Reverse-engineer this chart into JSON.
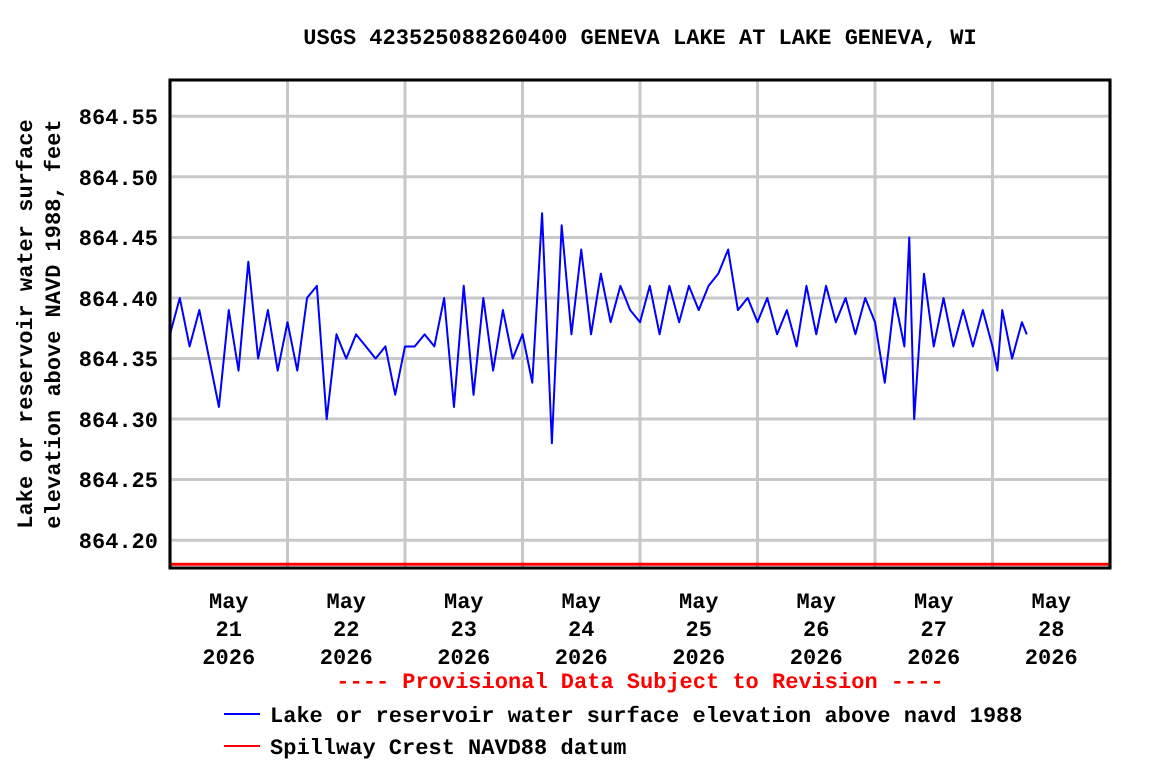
{
  "chart_data": {
    "type": "line",
    "title": "USGS 423525088260400 GENEVA LAKE AT LAKE GENEVA, WI",
    "ylabel": "Lake or reservoir water surface\nelevation above NAVD 1988, feet",
    "annotations": [
      "---- Provisional Data Subject to Revision ----"
    ],
    "xlim": [
      "2026-05-21T00:00",
      "2026-05-29T00:00"
    ],
    "xticks": [
      {
        "value": "2026-05-21T00:00",
        "label": null
      },
      {
        "value": "2026-05-21T12:00",
        "label": "May\n21\n2026"
      },
      {
        "value": "2026-05-22T00:00",
        "label": null
      },
      {
        "value": "2026-05-22T12:00",
        "label": "May\n22\n2026"
      },
      {
        "value": "2026-05-23T00:00",
        "label": null
      },
      {
        "value": "2026-05-23T12:00",
        "label": "May\n23\n2026"
      },
      {
        "value": "2026-05-24T00:00",
        "label": null
      },
      {
        "value": "2026-05-24T12:00",
        "label": "May\n24\n2026"
      },
      {
        "value": "2026-05-25T00:00",
        "label": null
      },
      {
        "value": "2026-05-25T12:00",
        "label": "May\n25\n2026"
      },
      {
        "value": "2026-05-26T00:00",
        "label": null
      },
      {
        "value": "2026-05-26T12:00",
        "label": "May\n26\n2026"
      },
      {
        "value": "2026-05-27T00:00",
        "label": null
      },
      {
        "value": "2026-05-27T12:00",
        "label": "May\n27\n2026"
      },
      {
        "value": "2026-05-28T00:00",
        "label": null
      },
      {
        "value": "2026-05-28T12:00",
        "label": "May\n28\n2026"
      },
      {
        "value": "2026-05-29T00:00",
        "label": null
      }
    ],
    "ylim": [
      864.177,
      864.58
    ],
    "yticks": [
      {
        "value": 864.2,
        "label": "864.20"
      },
      {
        "value": 864.25,
        "label": "864.25"
      },
      {
        "value": 864.3,
        "label": "864.30"
      },
      {
        "value": 864.35,
        "label": "864.35"
      },
      {
        "value": 864.4,
        "label": "864.40"
      },
      {
        "value": 864.45,
        "label": "864.45"
      },
      {
        "value": 864.5,
        "label": "864.50"
      },
      {
        "value": 864.55,
        "label": "864.55"
      }
    ],
    "grid": true,
    "legend": "bottom",
    "line_style": "solid",
    "marker": "none",
    "series": [
      {
        "name": "Lake or reservoir water surface elevation above navd 1988",
        "color": "#0000ff",
        "x": [
          "2026-05-21T00:00",
          "2026-05-21T02:00",
          "2026-05-21T04:00",
          "2026-05-21T06:00",
          "2026-05-21T08:00",
          "2026-05-21T10:00",
          "2026-05-21T12:00",
          "2026-05-21T14:00",
          "2026-05-21T16:00",
          "2026-05-21T18:00",
          "2026-05-21T20:00",
          "2026-05-21T22:00",
          "2026-05-22T00:00",
          "2026-05-22T02:00",
          "2026-05-22T04:00",
          "2026-05-22T06:00",
          "2026-05-22T08:00",
          "2026-05-22T10:00",
          "2026-05-22T12:00",
          "2026-05-22T14:00",
          "2026-05-22T16:00",
          "2026-05-22T18:00",
          "2026-05-22T20:00",
          "2026-05-22T22:00",
          "2026-05-23T00:00",
          "2026-05-23T02:00",
          "2026-05-23T04:00",
          "2026-05-23T06:00",
          "2026-05-23T08:00",
          "2026-05-23T10:00",
          "2026-05-23T12:00",
          "2026-05-23T14:00",
          "2026-05-23T16:00",
          "2026-05-23T18:00",
          "2026-05-23T20:00",
          "2026-05-23T22:00",
          "2026-05-24T00:00",
          "2026-05-24T02:00",
          "2026-05-24T04:00",
          "2026-05-24T06:00",
          "2026-05-24T08:00",
          "2026-05-24T10:00",
          "2026-05-24T12:00",
          "2026-05-24T14:00",
          "2026-05-24T16:00",
          "2026-05-24T18:00",
          "2026-05-24T20:00",
          "2026-05-24T22:00",
          "2026-05-25T00:00",
          "2026-05-25T02:00",
          "2026-05-25T04:00",
          "2026-05-25T06:00",
          "2026-05-25T08:00",
          "2026-05-25T10:00",
          "2026-05-25T12:00",
          "2026-05-25T14:00",
          "2026-05-25T16:00",
          "2026-05-25T18:00",
          "2026-05-25T20:00",
          "2026-05-25T22:00",
          "2026-05-26T00:00",
          "2026-05-26T02:00",
          "2026-05-26T04:00",
          "2026-05-26T06:00",
          "2026-05-26T08:00",
          "2026-05-26T10:00",
          "2026-05-26T12:00",
          "2026-05-26T14:00",
          "2026-05-26T16:00",
          "2026-05-26T18:00",
          "2026-05-26T20:00",
          "2026-05-26T22:00",
          "2026-05-27T00:00",
          "2026-05-27T02:00",
          "2026-05-27T04:00",
          "2026-05-27T06:00",
          "2026-05-27T07:00",
          "2026-05-27T08:00",
          "2026-05-27T10:00",
          "2026-05-27T12:00",
          "2026-05-27T14:00",
          "2026-05-27T16:00",
          "2026-05-27T18:00",
          "2026-05-27T20:00",
          "2026-05-27T22:00",
          "2026-05-28T00:00",
          "2026-05-28T01:00",
          "2026-05-28T02:00",
          "2026-05-28T04:00",
          "2026-05-28T06:00",
          "2026-05-28T07:00"
        ],
        "values": [
          864.37,
          864.4,
          864.36,
          864.39,
          864.35,
          864.31,
          864.39,
          864.34,
          864.43,
          864.35,
          864.39,
          864.34,
          864.38,
          864.34,
          864.4,
          864.41,
          864.3,
          864.37,
          864.35,
          864.37,
          864.36,
          864.35,
          864.36,
          864.32,
          864.36,
          864.36,
          864.37,
          864.36,
          864.4,
          864.31,
          864.41,
          864.32,
          864.4,
          864.34,
          864.39,
          864.35,
          864.37,
          864.33,
          864.47,
          864.28,
          864.46,
          864.37,
          864.44,
          864.37,
          864.42,
          864.38,
          864.41,
          864.39,
          864.38,
          864.41,
          864.37,
          864.41,
          864.38,
          864.41,
          864.39,
          864.41,
          864.42,
          864.44,
          864.39,
          864.4,
          864.38,
          864.4,
          864.37,
          864.39,
          864.36,
          864.41,
          864.37,
          864.41,
          864.38,
          864.4,
          864.37,
          864.4,
          864.38,
          864.33,
          864.4,
          864.36,
          864.45,
          864.3,
          864.42,
          864.36,
          864.4,
          864.36,
          864.39,
          864.36,
          864.39,
          864.36,
          864.34,
          864.39,
          864.35,
          864.38,
          864.37
        ]
      },
      {
        "name": "Spillway Crest NAVD88 datum",
        "color": "#ff0000",
        "x": [
          "2026-05-21T00:00",
          "2026-05-29T00:00"
        ],
        "values": [
          864.18,
          864.18
        ]
      }
    ]
  }
}
